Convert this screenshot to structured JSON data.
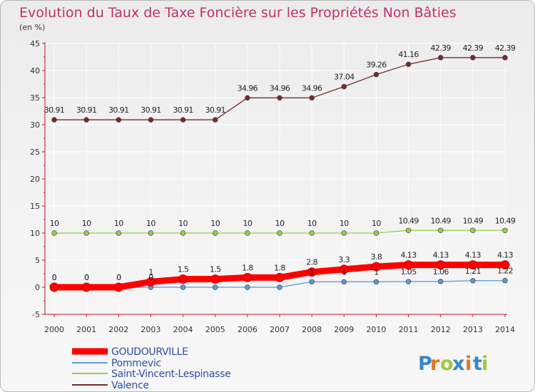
{
  "chart_data": {
    "type": "line",
    "title": "Evolution du Taux de Taxe Foncière sur les Propriétés Non Bâties",
    "ylabel": "(en %)",
    "xlabel": "",
    "categories": [
      "2000",
      "2001",
      "2002",
      "2003",
      "2004",
      "2005",
      "2006",
      "2007",
      "2008",
      "2009",
      "2010",
      "2011",
      "2012",
      "2013",
      "2014"
    ],
    "ylim": [
      -5,
      45
    ],
    "yticks": [
      "-5",
      "0",
      "5",
      "10",
      "15",
      "20",
      "25",
      "30",
      "35",
      "40",
      "45"
    ],
    "series": [
      {
        "name": "GOUDOURVILLE",
        "color": "#ff0000",
        "values": [
          0,
          0,
          0,
          1,
          1.5,
          1.5,
          1.8,
          1.8,
          2.8,
          3.3,
          3.8,
          4.13,
          4.13,
          4.13,
          4.13
        ],
        "labels": [
          "0",
          "0",
          "0",
          "1",
          "1.5",
          "1.5",
          "1.8",
          "1.8",
          "2.8",
          "3.3",
          "3.8",
          "4.13",
          "4.13",
          "4.13",
          "4.13"
        ]
      },
      {
        "name": "Pommevic",
        "color": "#5b9bd5",
        "values": [
          0,
          0,
          0,
          0,
          0,
          0,
          0,
          0,
          1,
          1,
          1,
          1.05,
          1.06,
          1.21,
          1.22
        ],
        "labels": [
          "0",
          "0",
          "0",
          "0",
          "",
          "",
          "",
          "",
          "1",
          "1",
          "1",
          "1.05",
          "1.06",
          "1.21",
          "1.22"
        ]
      },
      {
        "name": "Saint-Vincent-Lespinasse",
        "color": "#8fd14f",
        "values": [
          10,
          10,
          10,
          10,
          10,
          10,
          10,
          10,
          10,
          10,
          10,
          10.49,
          10.49,
          10.49,
          10.49
        ],
        "labels": [
          "10",
          "10",
          "10",
          "10",
          "10",
          "10",
          "10",
          "10",
          "10",
          "10",
          "10",
          "10.49",
          "10.49",
          "10.49",
          "10.49"
        ]
      },
      {
        "name": "Valence",
        "color": "#7b2a2a",
        "values": [
          30.91,
          30.91,
          30.91,
          30.91,
          30.91,
          30.91,
          34.96,
          34.96,
          34.96,
          37.04,
          39.26,
          41.16,
          42.39,
          42.39,
          42.39
        ],
        "labels": [
          "30.91",
          "30.91",
          "30.91",
          "30.91",
          "30.91",
          "30.91",
          "34.96",
          "34.96",
          "34.96",
          "37.04",
          "39.26",
          "41.16",
          "42.39",
          "42.39",
          "42.39"
        ]
      }
    ],
    "grid": true,
    "legend": "bottom-left"
  },
  "brand": {
    "text": "Proxiti",
    "letters": [
      "P",
      "r",
      "o",
      "x",
      "i",
      "t",
      "i"
    ],
    "colors": [
      "#3a86c8",
      "#e8731e",
      "#9ccb3b",
      "#3a86c8",
      "#e8731e",
      "#3a86c8",
      "#9ccb3b"
    ]
  }
}
